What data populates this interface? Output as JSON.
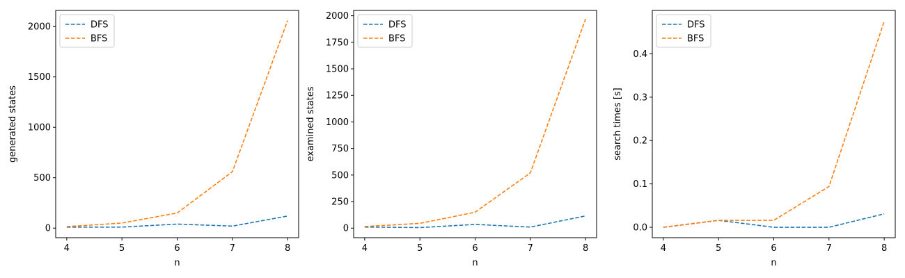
{
  "colors": {
    "dfs": "#1f77b4",
    "bfs": "#ff7f0e"
  },
  "chart_data": [
    {
      "type": "line",
      "title": "",
      "xlabel": "n",
      "ylabel": "generated states",
      "x": [
        4,
        5,
        6,
        7,
        8
      ],
      "xlim": [
        3.8,
        8.2
      ],
      "ylim": [
        -95,
        2160
      ],
      "xticks": [
        "4",
        "5",
        "6",
        "7",
        "8"
      ],
      "yticks": [
        0,
        500,
        1000,
        1500,
        2000
      ],
      "ytick_labels": [
        "0",
        "500",
        "1000",
        "1500",
        "2000"
      ],
      "legend": "top-left",
      "grid": false,
      "series": [
        {
          "name": "DFS",
          "color": "#1f77b4",
          "linestyle": "dashed",
          "values": [
            10,
            10,
            40,
            20,
            120
          ]
        },
        {
          "name": "BFS",
          "color": "#ff7f0e",
          "linestyle": "dashed",
          "values": [
            15,
            50,
            150,
            560,
            2060
          ]
        }
      ]
    },
    {
      "type": "line",
      "title": "",
      "xlabel": "n",
      "ylabel": "examined states",
      "x": [
        4,
        5,
        6,
        7,
        8
      ],
      "xlim": [
        3.8,
        8.2
      ],
      "ylim": [
        -90,
        2050
      ],
      "xticks": [
        "4",
        "5",
        "6",
        "7",
        "8"
      ],
      "yticks": [
        0,
        250,
        500,
        750,
        1000,
        1250,
        1500,
        1750,
        2000
      ],
      "ytick_labels": [
        "0",
        "250",
        "500",
        "750",
        "1000",
        "1250",
        "1500",
        "1750",
        "2000"
      ],
      "legend": "top-left",
      "grid": false,
      "series": [
        {
          "name": "DFS",
          "color": "#1f77b4",
          "linestyle": "dashed",
          "values": [
            10,
            5,
            35,
            10,
            115
          ]
        },
        {
          "name": "BFS",
          "color": "#ff7f0e",
          "linestyle": "dashed",
          "values": [
            15,
            45,
            150,
            520,
            1970
          ]
        }
      ]
    },
    {
      "type": "line",
      "title": "",
      "xlabel": "n",
      "ylabel": "search times [s]",
      "x": [
        4,
        5,
        6,
        7,
        8
      ],
      "xlim": [
        3.8,
        8.2
      ],
      "ylim": [
        -0.024,
        0.5
      ],
      "xticks": [
        "4",
        "5",
        "6",
        "7",
        "8"
      ],
      "yticks": [
        0.0,
        0.1,
        0.2,
        0.3,
        0.4
      ],
      "ytick_labels": [
        "0.0",
        "0.1",
        "0.2",
        "0.3",
        "0.4"
      ],
      "legend": "top-left",
      "grid": false,
      "series": [
        {
          "name": "DFS",
          "color": "#1f77b4",
          "linestyle": "dashed",
          "values": [
            0.0,
            0.016,
            0.0,
            0.0,
            0.031
          ]
        },
        {
          "name": "BFS",
          "color": "#ff7f0e",
          "linestyle": "dashed",
          "values": [
            0.0,
            0.016,
            0.016,
            0.094,
            0.475
          ]
        }
      ]
    }
  ]
}
